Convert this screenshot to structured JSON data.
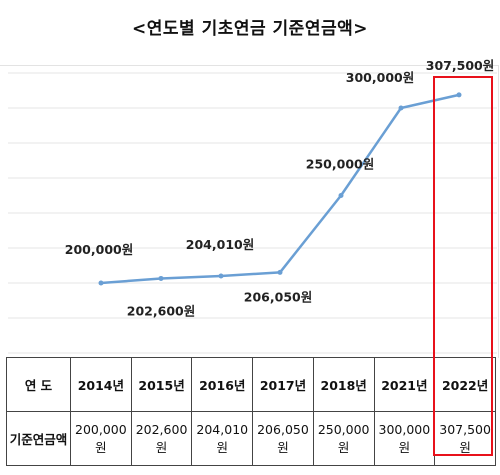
{
  "title": "<연도별 기초연금 기준연금액>",
  "chart_data": {
    "type": "line",
    "categories": [
      "2014년",
      "2015년",
      "2016년",
      "2017년",
      "2018년",
      "2021년",
      "2022년"
    ],
    "values": [
      200000,
      202600,
      204010,
      206050,
      250000,
      300000,
      307500
    ],
    "data_labels": [
      "200,000원",
      "202,600원",
      "204,010원",
      "206,050원",
      "250,000원",
      "300,000원",
      "307,500원"
    ],
    "ylim": [
      160000,
      320000
    ],
    "grid": true,
    "line_color": "#6a9fd4",
    "highlight_color": "#e8111b",
    "highlight_category": "2022년"
  },
  "table": {
    "row_header_year": "연  도",
    "row_header_amount": "기준연금액",
    "years": [
      "2014년",
      "2015년",
      "2016년",
      "2017년",
      "2018년",
      "2021년",
      "2022년"
    ],
    "amounts": [
      "200,000원",
      "202,600원",
      "204,010원",
      "206,050원",
      "250,000원",
      "300,000원",
      "307,500원"
    ]
  }
}
